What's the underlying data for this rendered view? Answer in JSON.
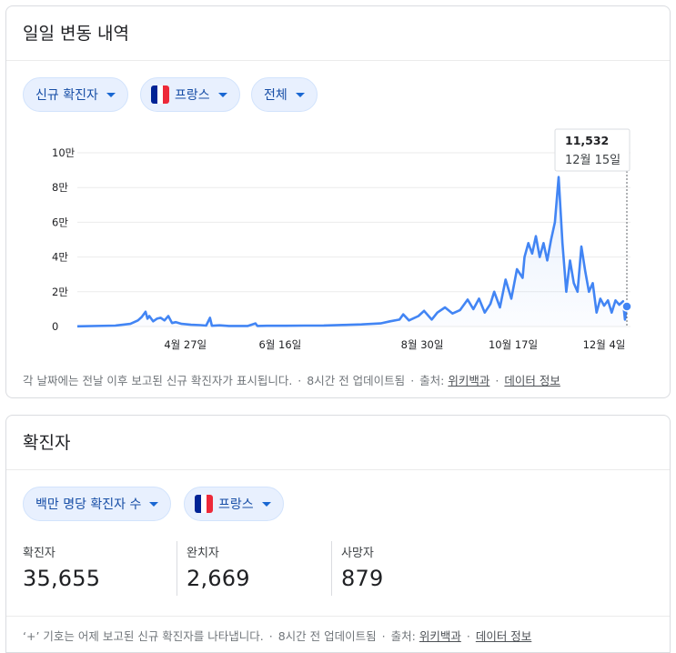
{
  "daily": {
    "title": "일일 변동 내역",
    "filters": {
      "metric": "신규 확진자",
      "country": "프랑스",
      "range": "전체"
    },
    "tooltip": {
      "value": "11,532",
      "date": "12월 15일"
    },
    "footer": {
      "note": "각 날짜에는 전날 이후 보고된 신규 확진자가 표시됩니다.",
      "updated": "8시간 전 업데이트됨",
      "source_label": "출처:",
      "source_link": "위키백과",
      "data_info": "데이터 정보"
    }
  },
  "totals": {
    "title": "확진자",
    "filters": {
      "metric": "백만 명당 확진자 수",
      "country": "프랑스"
    },
    "stats": [
      {
        "label": "확진자",
        "value": "35,655"
      },
      {
        "label": "완치자",
        "value": "2,669"
      },
      {
        "label": "사망자",
        "value": "879"
      }
    ],
    "footer": {
      "note": "‘+’ 기호는 어제 보고된 신규 확진자를 나타냅니다.",
      "updated": "8시간 전 업데이트됨",
      "source_label": "출처:",
      "source_link": "위키백과",
      "data_info": "데이터 정보"
    }
  },
  "colors": {
    "line": "#4285f4",
    "chip_text": "#174ea6",
    "flag": [
      "#002395",
      "#ffffff",
      "#ed2939"
    ]
  },
  "chart_data": {
    "type": "line",
    "ylim": [
      0,
      100000
    ],
    "y_ticks": [
      {
        "value": 0,
        "label": "0"
      },
      {
        "value": 20000,
        "label": "2만"
      },
      {
        "value": 40000,
        "label": "4만"
      },
      {
        "value": 60000,
        "label": "6만"
      },
      {
        "value": 80000,
        "label": "8만"
      },
      {
        "value": 100000,
        "label": "10만"
      }
    ],
    "x_ticks": [
      {
        "day": 57,
        "label": "4월 27일"
      },
      {
        "day": 107,
        "label": "6월 16일"
      },
      {
        "day": 182,
        "label": "8월 30일"
      },
      {
        "day": 230,
        "label": "10월 17일"
      },
      {
        "day": 278,
        "label": "12월 4일"
      }
    ],
    "anchors": [
      [
        0,
        100
      ],
      [
        20,
        500
      ],
      [
        28,
        1500
      ],
      [
        32,
        3500
      ],
      [
        34,
        5500
      ],
      [
        36,
        8500
      ],
      [
        37,
        4500
      ],
      [
        38,
        6000
      ],
      [
        40,
        3000
      ],
      [
        42,
        4500
      ],
      [
        44,
        5000
      ],
      [
        46,
        3500
      ],
      [
        48,
        6000
      ],
      [
        50,
        2000
      ],
      [
        52,
        2500
      ],
      [
        55,
        1500
      ],
      [
        60,
        1000
      ],
      [
        65,
        800
      ],
      [
        68,
        500
      ],
      [
        70,
        5000
      ],
      [
        71,
        400
      ],
      [
        75,
        700
      ],
      [
        80,
        300
      ],
      [
        90,
        300
      ],
      [
        94,
        1800
      ],
      [
        95,
        300
      ],
      [
        100,
        400
      ],
      [
        110,
        400
      ],
      [
        120,
        500
      ],
      [
        130,
        600
      ],
      [
        140,
        900
      ],
      [
        150,
        1200
      ],
      [
        160,
        1800
      ],
      [
        165,
        3000
      ],
      [
        170,
        4000
      ],
      [
        172,
        7000
      ],
      [
        175,
        3500
      ],
      [
        180,
        6000
      ],
      [
        183,
        9000
      ],
      [
        187,
        4000
      ],
      [
        190,
        8000
      ],
      [
        194,
        11000
      ],
      [
        198,
        7500
      ],
      [
        202,
        9500
      ],
      [
        206,
        15500
      ],
      [
        209,
        10000
      ],
      [
        212,
        16000
      ],
      [
        215,
        8000
      ],
      [
        218,
        13000
      ],
      [
        220,
        20000
      ],
      [
        223,
        11000
      ],
      [
        226,
        27000
      ],
      [
        229,
        16000
      ],
      [
        232,
        33000
      ],
      [
        235,
        28000
      ],
      [
        236,
        40000
      ],
      [
        238,
        48000
      ],
      [
        240,
        42000
      ],
      [
        242,
        52000
      ],
      [
        244,
        40000
      ],
      [
        246,
        48000
      ],
      [
        248,
        38000
      ],
      [
        250,
        50000
      ],
      [
        252,
        60000
      ],
      [
        254,
        86000
      ],
      [
        256,
        48000
      ],
      [
        258,
        20000
      ],
      [
        260,
        38000
      ],
      [
        262,
        25000
      ],
      [
        264,
        20000
      ],
      [
        266,
        46000
      ],
      [
        268,
        32000
      ],
      [
        270,
        20000
      ],
      [
        272,
        25000
      ],
      [
        274,
        8000
      ],
      [
        276,
        16000
      ],
      [
        278,
        12000
      ],
      [
        280,
        15000
      ],
      [
        282,
        8000
      ],
      [
        284,
        15000
      ],
      [
        286,
        12500
      ],
      [
        288,
        14500
      ],
      [
        289,
        4000
      ],
      [
        290,
        11532
      ]
    ],
    "highlight": {
      "day": 290,
      "value": 11532
    }
  }
}
